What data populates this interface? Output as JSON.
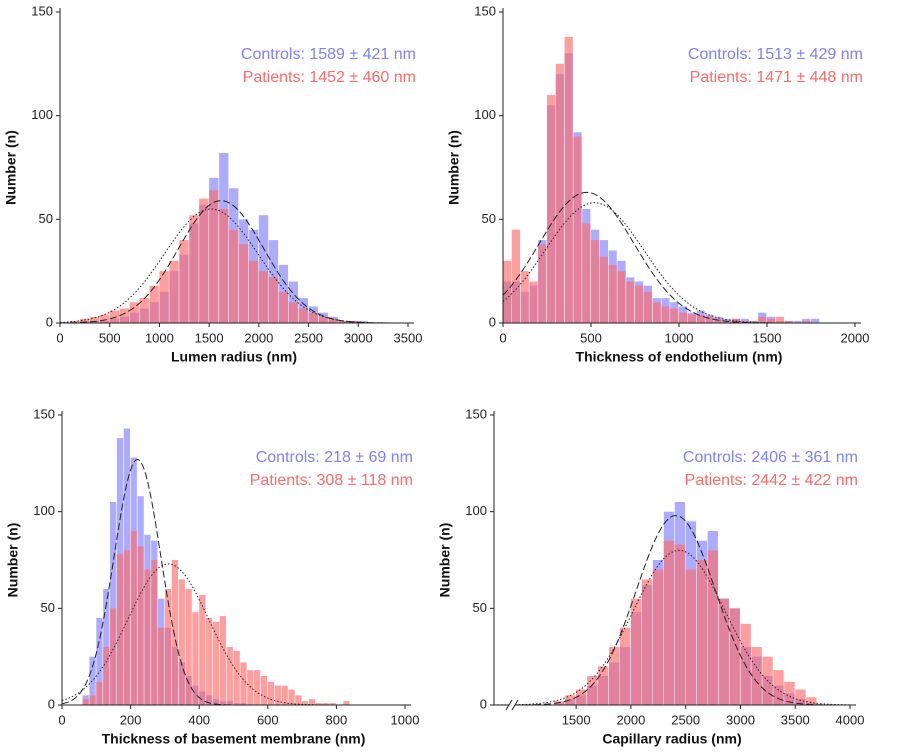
{
  "chart_data": [
    {
      "type": "histogram",
      "xlabel": "Lumen radius (nm)",
      "ylabel": "Number (n)",
      "xlim": [
        0,
        3500
      ],
      "ylim": [
        0,
        150
      ],
      "xticks": [
        0,
        500,
        1000,
        1500,
        2000,
        2500,
        3000,
        3500
      ],
      "yticks": [
        0,
        50,
        100,
        150
      ],
      "bins": [
        100,
        200,
        300,
        400,
        500,
        600,
        700,
        800,
        900,
        1000,
        1100,
        1200,
        1300,
        1400,
        1500,
        1600,
        1700,
        1800,
        1900,
        2000,
        2100,
        2200,
        2300,
        2400,
        2500,
        2600,
        2700,
        2800,
        2900,
        3000,
        3100
      ],
      "series": [
        {
          "name": "Controls",
          "color": "#7f7fff",
          "label": "Controls:  1589 ± 421 nm",
          "values": [
            0,
            1,
            1,
            1,
            2,
            3,
            5,
            7,
            10,
            15,
            25,
            33,
            48,
            57,
            70,
            82,
            65,
            50,
            45,
            52,
            40,
            28,
            20,
            12,
            8,
            5,
            3,
            1,
            1,
            1
          ],
          "fit": {
            "center": 1620,
            "sd": 430,
            "peak": 59,
            "dash": "dashed"
          }
        },
        {
          "name": "Patients",
          "color": "#ff6a6a",
          "label": "Patients:  1452 ± 460 nm",
          "values": [
            1,
            2,
            3,
            4,
            6,
            7,
            10,
            12,
            18,
            25,
            30,
            40,
            52,
            60,
            64,
            55,
            45,
            38,
            30,
            25,
            22,
            15,
            10,
            7,
            5,
            3,
            2,
            1,
            1,
            0
          ],
          "fit": {
            "center": 1520,
            "sd": 470,
            "peak": 55,
            "dash": "dotted"
          }
        }
      ]
    },
    {
      "type": "histogram",
      "xlabel": "Thickness of endothelium (nm)",
      "ylabel": "Number (n)",
      "xlim": [
        0,
        2000
      ],
      "ylim": [
        0,
        150
      ],
      "xticks": [
        0,
        500,
        1000,
        1500,
        2000
      ],
      "yticks": [
        0,
        50,
        100,
        150
      ],
      "bins": [
        0,
        50,
        100,
        150,
        200,
        250,
        300,
        350,
        400,
        450,
        500,
        550,
        600,
        650,
        700,
        750,
        800,
        850,
        900,
        950,
        1000,
        1050,
        1100,
        1150,
        1200,
        1250,
        1300,
        1350,
        1400,
        1450,
        1500,
        1550,
        1600,
        1650,
        1700,
        1750,
        1800
      ],
      "series": [
        {
          "name": "Controls",
          "color": "#7f7fff",
          "label": "Controls:  1513 ± 429 nm",
          "values": [
            20,
            20,
            15,
            18,
            40,
            105,
            120,
            130,
            92,
            55,
            45,
            40,
            35,
            30,
            22,
            20,
            18,
            12,
            12,
            10,
            8,
            5,
            6,
            4,
            3,
            2,
            2,
            2,
            1,
            5,
            3,
            1,
            1,
            1,
            2,
            2
          ],
          "fit": {
            "center": 475,
            "sd": 270,
            "peak": 63,
            "dash": "dashed"
          }
        },
        {
          "name": "Patients",
          "color": "#ff6a6a",
          "label": "Patients:  1471 ± 448 nm",
          "values": [
            30,
            45,
            25,
            20,
            38,
            110,
            125,
            138,
            90,
            48,
            40,
            32,
            28,
            25,
            20,
            18,
            15,
            10,
            8,
            7,
            5,
            4,
            4,
            3,
            2,
            1,
            2,
            1,
            1,
            3,
            2,
            3,
            1,
            0,
            1,
            0
          ],
          "fit": {
            "center": 520,
            "sd": 280,
            "peak": 58,
            "dash": "dotted"
          }
        }
      ]
    },
    {
      "type": "histogram",
      "xlabel": "Thickness of basement membrane (nm)",
      "ylabel": "Number (n)",
      "xlim": [
        0,
        1000
      ],
      "ylim": [
        0,
        150
      ],
      "xticks": [
        0,
        200,
        400,
        600,
        800,
        1000
      ],
      "yticks": [
        0,
        50,
        100,
        150
      ],
      "bins": [
        60,
        80,
        100,
        120,
        140,
        160,
        180,
        200,
        220,
        240,
        260,
        280,
        300,
        320,
        340,
        360,
        380,
        400,
        420,
        440,
        460,
        480,
        500,
        520,
        540,
        560,
        580,
        600,
        620,
        640,
        660,
        680,
        700,
        720,
        740,
        760,
        780,
        800,
        820,
        840
      ],
      "series": [
        {
          "name": "Controls",
          "color": "#7f7fff",
          "label": "Controls:  218 ± 69 nm",
          "values": [
            5,
            25,
            45,
            60,
            105,
            138,
            143,
            128,
            108,
            88,
            85,
            55,
            40,
            30,
            22,
            15,
            10,
            7,
            5,
            3,
            2,
            2,
            1,
            1,
            0,
            0,
            0,
            0,
            0,
            0,
            0,
            0,
            0,
            0,
            0,
            0,
            0,
            0,
            0
          ],
          "fit": {
            "center": 220,
            "sd": 68,
            "peak": 127,
            "dash": "dashed"
          }
        },
        {
          "name": "Patients",
          "color": "#ff6a6a",
          "label": "Patients:  308 ± 118 nm",
          "values": [
            3,
            5,
            12,
            30,
            50,
            78,
            80,
            90,
            82,
            70,
            75,
            40,
            60,
            75,
            65,
            60,
            48,
            57,
            45,
            43,
            46,
            30,
            28,
            22,
            18,
            18,
            15,
            12,
            10,
            10,
            8,
            5,
            2,
            3,
            1,
            1,
            1,
            0,
            2
          ],
          "fit": {
            "center": 310,
            "sd": 118,
            "peak": 73,
            "dash": "dotted"
          }
        }
      ]
    },
    {
      "type": "histogram",
      "xlabel": "Capillary radius (nm)",
      "ylabel": "Number (n)",
      "axis_break": true,
      "xlim": [
        750,
        4000
      ],
      "ylim": [
        0,
        150
      ],
      "xticks": [
        1500,
        2000,
        2500,
        3000,
        3500,
        4000
      ],
      "yticks": [
        0,
        50,
        100,
        150
      ],
      "bins": [
        1300,
        1400,
        1500,
        1600,
        1700,
        1800,
        1900,
        2000,
        2100,
        2200,
        2300,
        2400,
        2500,
        2600,
        2700,
        2800,
        2900,
        3000,
        3100,
        3200,
        3300,
        3400,
        3500,
        3600,
        3700
      ],
      "series": [
        {
          "name": "Controls",
          "color": "#7f7fff",
          "label": "Controls:  2406 ± 361 nm",
          "values": [
            1,
            3,
            5,
            10,
            15,
            22,
            30,
            48,
            62,
            75,
            100,
            105,
            95,
            85,
            90,
            55,
            50,
            30,
            25,
            15,
            10,
            6,
            3,
            1
          ],
          "fit": {
            "center": 2410,
            "sd": 360,
            "peak": 98,
            "dash": "dashed"
          }
        },
        {
          "name": "Patients",
          "color": "#ff6a6a",
          "label": "Patients:  2442 ± 422 nm",
          "values": [
            2,
            5,
            8,
            15,
            20,
            30,
            40,
            55,
            65,
            70,
            85,
            83,
            70,
            75,
            80,
            55,
            50,
            42,
            30,
            25,
            18,
            12,
            8,
            4
          ],
          "fit": {
            "center": 2440,
            "sd": 420,
            "peak": 80,
            "dash": "dotted"
          }
        }
      ]
    }
  ]
}
